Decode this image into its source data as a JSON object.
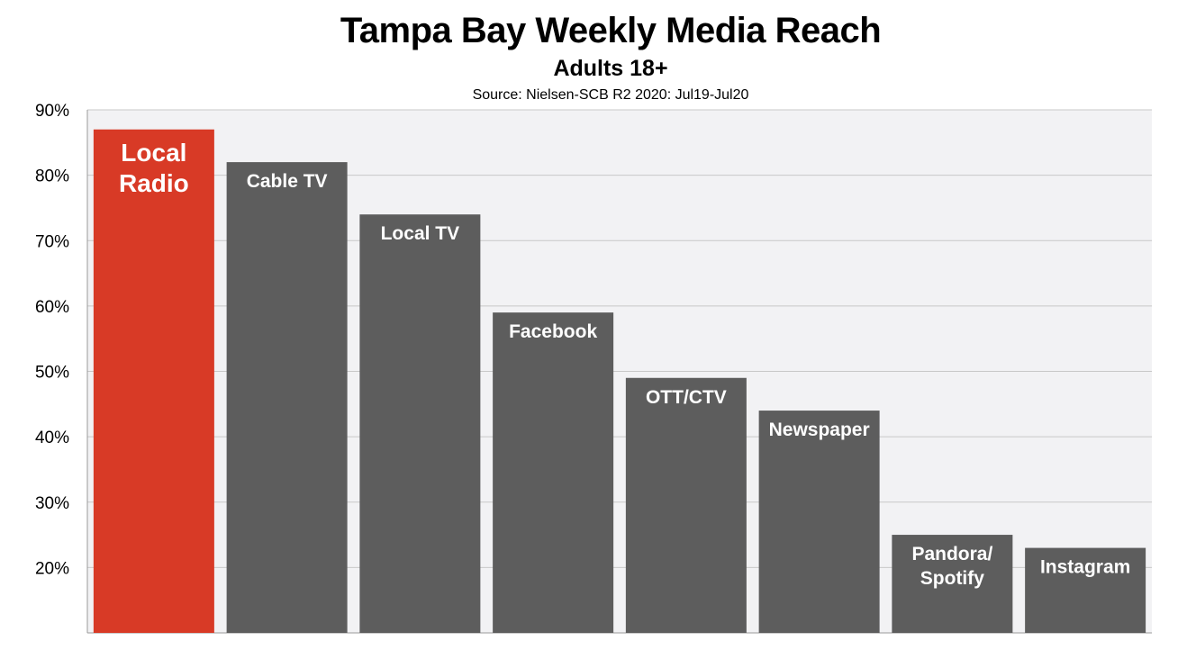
{
  "chart_data": {
    "type": "bar",
    "title": "Tampa Bay Weekly Media Reach",
    "subtitle": "Adults 18+",
    "source": "Source: Nielsen-SCB R2 2020: Jul19-Jul20",
    "categories": [
      [
        "Local",
        "Radio"
      ],
      [
        "Cable TV"
      ],
      [
        "Local TV"
      ],
      [
        "Facebook"
      ],
      [
        "OTT/CTV"
      ],
      [
        "Newspaper"
      ],
      [
        "Pandora/",
        "Spotify"
      ],
      [
        "Instagram"
      ]
    ],
    "values": [
      87,
      82,
      74,
      59,
      49,
      44,
      25,
      23
    ],
    "ylim": [
      10,
      90
    ],
    "yticks": [
      20,
      30,
      40,
      50,
      60,
      70,
      80,
      90
    ],
    "ytick_labels": [
      "20%",
      "30%",
      "40%",
      "50%",
      "60%",
      "70%",
      "80%",
      "90%"
    ],
    "grid": true,
    "colors": {
      "highlight": "#d83a26",
      "bar": "#5d5d5d",
      "plot_background": "#f2f2f4",
      "grid": "#c8c8c8",
      "axis": "#9a9a9a"
    },
    "highlight_index": 0
  }
}
